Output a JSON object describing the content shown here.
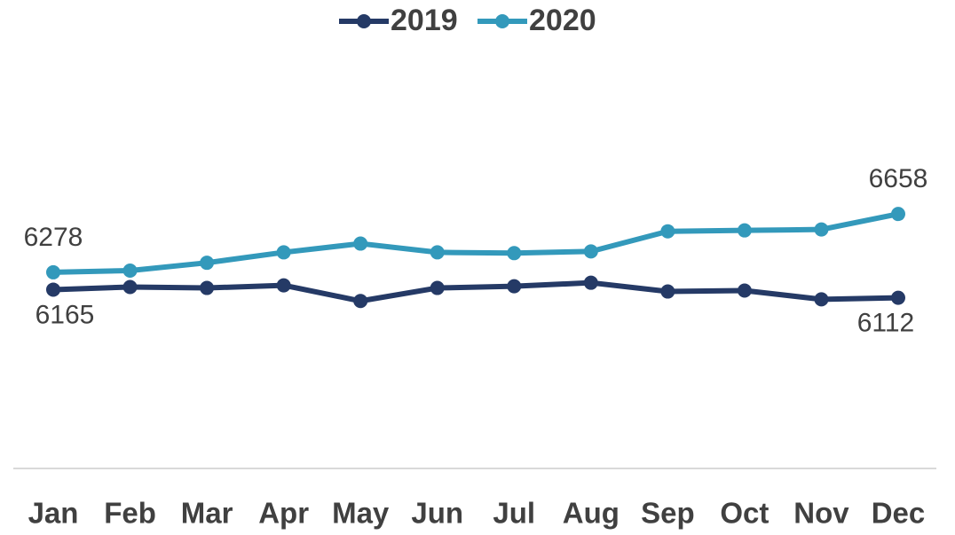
{
  "chart_data": {
    "type": "line",
    "categories": [
      "Jan",
      "Feb",
      "Mar",
      "Apr",
      "May",
      "Jun",
      "Jul",
      "Aug",
      "Sep",
      "Oct",
      "Nov",
      "Dec"
    ],
    "series": [
      {
        "name": "2019",
        "color": "#253a66",
        "values": [
          6165,
          6182,
          6176,
          6193,
          6091,
          6176,
          6187,
          6210,
          6153,
          6159,
          6102,
          6112
        ]
      },
      {
        "name": "2020",
        "color": "#3399bb",
        "values": [
          6278,
          6289,
          6340,
          6408,
          6465,
          6408,
          6403,
          6414,
          6545,
          6551,
          6557,
          6658
        ]
      }
    ],
    "ylim": [
      5000,
      7000
    ],
    "legend": "top",
    "data_labels": "ends"
  }
}
